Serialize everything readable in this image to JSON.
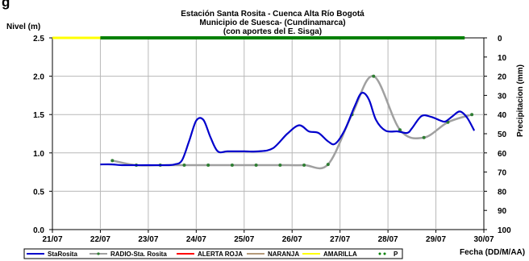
{
  "chart_data": {
    "type": "line",
    "title": "Estación Santa Rosita - Cuenca Alta Río Bogotá",
    "subtitle_lines": [
      "Municipio de Suesca- (Cundinamarca)",
      "(con aportes del  E. Sisga)"
    ],
    "partial_header_text": "g",
    "ylabel": "Nivel (m)",
    "y2label": "Precipitacion (mm)",
    "xlabel": "Fecha (DD/M/AA)",
    "ylim": [
      0.0,
      2.5
    ],
    "y2lim": [
      0,
      100
    ],
    "y2_inverted": true,
    "xlim": [
      0,
      9
    ],
    "x_ticks": [
      "21/07",
      "22/07",
      "23/07",
      "24/07",
      "25/07",
      "26/07",
      "27/07",
      "28/07",
      "29/07",
      "30/07"
    ],
    "y_ticks": [
      "0.0",
      "0.5",
      "1.0",
      "1.5",
      "2.0",
      "2.5"
    ],
    "y2_ticks": [
      "0",
      "10",
      "20",
      "30",
      "40",
      "50",
      "60",
      "70",
      "80",
      "90",
      "100"
    ],
    "grid": true,
    "legend_position": "bottom",
    "series": [
      {
        "name": "StaRosita",
        "color": "#0000cc",
        "axis": "left",
        "points": [
          [
            1.0,
            0.85
          ],
          [
            1.25,
            0.85
          ],
          [
            1.45,
            0.84
          ],
          [
            2.0,
            0.84
          ],
          [
            2.4,
            0.84
          ],
          [
            2.55,
            0.85
          ],
          [
            2.7,
            0.9
          ],
          [
            2.85,
            1.15
          ],
          [
            3.0,
            1.42
          ],
          [
            3.15,
            1.43
          ],
          [
            3.3,
            1.2
          ],
          [
            3.45,
            1.02
          ],
          [
            3.65,
            1.02
          ],
          [
            4.0,
            1.02
          ],
          [
            4.3,
            1.02
          ],
          [
            4.6,
            1.06
          ],
          [
            4.9,
            1.25
          ],
          [
            5.15,
            1.36
          ],
          [
            5.35,
            1.28
          ],
          [
            5.55,
            1.26
          ],
          [
            5.75,
            1.15
          ],
          [
            5.9,
            1.12
          ],
          [
            6.1,
            1.3
          ],
          [
            6.3,
            1.6
          ],
          [
            6.45,
            1.78
          ],
          [
            6.6,
            1.7
          ],
          [
            6.75,
            1.43
          ],
          [
            6.95,
            1.29
          ],
          [
            7.2,
            1.28
          ],
          [
            7.4,
            1.26
          ],
          [
            7.5,
            1.32
          ],
          [
            7.7,
            1.48
          ],
          [
            7.9,
            1.47
          ],
          [
            8.1,
            1.42
          ],
          [
            8.2,
            1.41
          ],
          [
            8.35,
            1.48
          ],
          [
            8.5,
            1.54
          ],
          [
            8.65,
            1.46
          ],
          [
            8.8,
            1.29
          ]
        ]
      },
      {
        "name": "RADIO-Sta. Rosita",
        "color": "#a0a0a0",
        "axis": "left",
        "points": [
          [
            1.25,
            0.9
          ],
          [
            1.75,
            0.84
          ],
          [
            2.25,
            0.84
          ],
          [
            2.75,
            0.84
          ],
          [
            3.25,
            0.84
          ],
          [
            3.75,
            0.84
          ],
          [
            4.25,
            0.84
          ],
          [
            4.75,
            0.84
          ],
          [
            5.25,
            0.84
          ],
          [
            5.75,
            0.85
          ],
          [
            6.25,
            1.5
          ],
          [
            6.7,
            2.0
          ],
          [
            7.25,
            1.3
          ],
          [
            7.75,
            1.2
          ],
          [
            8.25,
            1.4
          ],
          [
            8.75,
            1.5
          ]
        ]
      },
      {
        "name": "ALERTA ROJA",
        "color": "#ff0000",
        "axis": "left",
        "points": []
      },
      {
        "name": "NARANJA",
        "color": "#b59a7a",
        "axis": "left",
        "points": []
      },
      {
        "name": "AMARILLA",
        "color": "#ffff00",
        "axis": "left",
        "points": [
          [
            0.0,
            2.5
          ],
          [
            1.0,
            2.5
          ]
        ]
      },
      {
        "name": "P",
        "color": "#008000",
        "axis": "right",
        "values_mm": [
          0,
          0,
          0,
          0,
          0,
          0,
          0,
          0,
          0
        ]
      }
    ]
  }
}
